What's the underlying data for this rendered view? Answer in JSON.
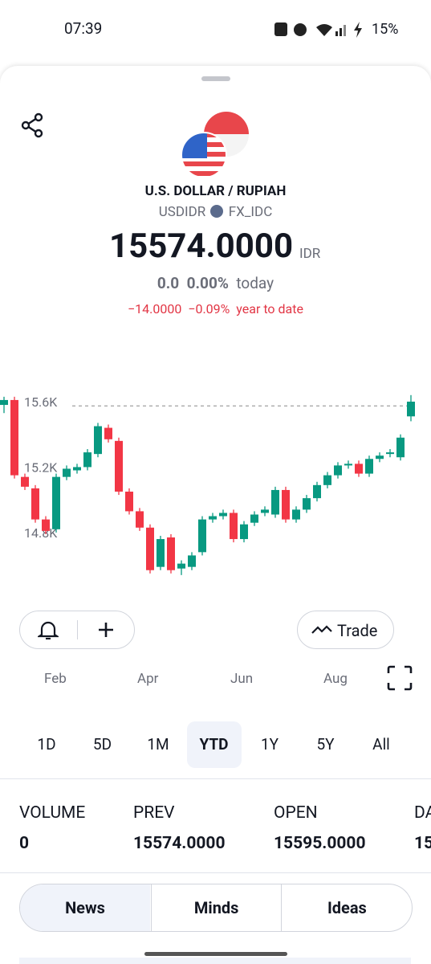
{
  "status": {
    "time": "07:39",
    "battery": "15%"
  },
  "header": {
    "title": "U.S. DOLLAR / RUPIAH",
    "symbol": "USDIDR",
    "exchange": "FX_IDC",
    "price": "15574.0000",
    "currency": "IDR",
    "change": "0.0",
    "change_pct": "0.00%",
    "change_period": "today",
    "ytd_change": "−14.0000",
    "ytd_change_pct": "−0.09%",
    "ytd_period": "year to date"
  },
  "chart_data": {
    "type": "candlestick",
    "up_color": "#089981",
    "down_color": "#f23645",
    "ylim": [
      14500,
      16000
    ],
    "yticks": [
      {
        "value": 15600,
        "label": "15.6K"
      },
      {
        "value": 15200,
        "label": "15.2K"
      },
      {
        "value": 14800,
        "label": "14.8K"
      }
    ],
    "last_price": 15574,
    "x_labels": [
      "Feb",
      "Apr",
      "Jun",
      "Aug"
    ],
    "open": [
      15580,
      15610,
      15140,
      15070,
      14880,
      14820,
      15140,
      15180,
      15200,
      15280,
      15440,
      15360,
      15050,
      14930,
      14830,
      14590,
      14770,
      14580,
      14590,
      14680,
      14880,
      14900,
      14920,
      14760,
      14860,
      14920,
      14910,
      15060,
      14880,
      14940,
      15010,
      15090,
      15150,
      15210,
      15220,
      15160,
      15250,
      15280,
      15260,
      15510
    ],
    "close": [
      15610,
      15150,
      15080,
      14880,
      14810,
      15140,
      15190,
      15200,
      15290,
      15450,
      15370,
      15050,
      14930,
      14830,
      14570,
      14760,
      14570,
      14610,
      14660,
      14880,
      14900,
      14920,
      14760,
      14850,
      14910,
      14940,
      15060,
      14880,
      14940,
      15010,
      15090,
      15150,
      15210,
      15220,
      15160,
      15250,
      15270,
      15290,
      15380,
      15600
    ],
    "high": [
      15630,
      15630,
      15160,
      15090,
      14900,
      15160,
      15210,
      15220,
      15310,
      15470,
      15460,
      15380,
      15070,
      14950,
      14850,
      14780,
      14790,
      14630,
      14680,
      14900,
      14920,
      14940,
      14940,
      14870,
      14930,
      14960,
      15080,
      15080,
      14960,
      15030,
      15110,
      15170,
      15230,
      15240,
      15240,
      15270,
      15290,
      15310,
      15400,
      15640
    ],
    "low": [
      15530,
      15130,
      15060,
      14860,
      14790,
      14800,
      15120,
      15160,
      15180,
      15260,
      15350,
      15030,
      14910,
      14810,
      14550,
      14570,
      14550,
      14540,
      14570,
      14660,
      14860,
      14880,
      14740,
      14740,
      14840,
      14900,
      14890,
      14860,
      14860,
      14920,
      14990,
      15070,
      15130,
      15190,
      15140,
      15140,
      15230,
      15260,
      15240,
      15480
    ]
  },
  "actions": {
    "trade": "Trade"
  },
  "ranges": {
    "items": [
      "1D",
      "5D",
      "1M",
      "YTD",
      "1Y",
      "5Y",
      "All"
    ],
    "active_index": 3
  },
  "stats": [
    {
      "label": "VOLUME",
      "value": "0"
    },
    {
      "label": "PREV",
      "value": "15574.0000"
    },
    {
      "label": "OPEN",
      "value": "15595.0000"
    },
    {
      "label": "DA",
      "value": "15"
    }
  ],
  "tabs": {
    "items": [
      "News",
      "Minds",
      "Ideas"
    ],
    "active_index": 0
  }
}
